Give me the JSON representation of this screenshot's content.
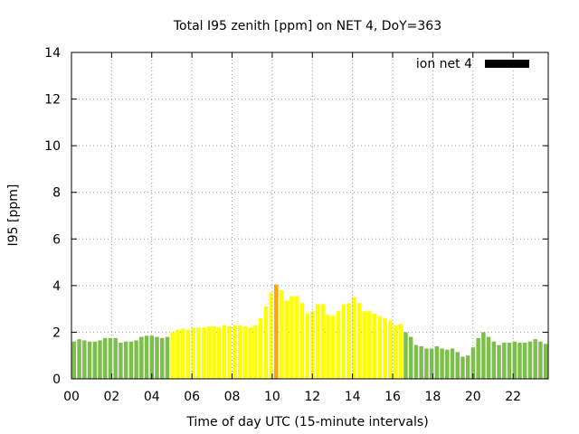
{
  "chart_data": {
    "type": "bar",
    "title": "Total I95 zenith [ppm] on NET 4, DoY=363",
    "xlabel": "Time of day UTC (15-minute intervals)",
    "ylabel": "I95 [ppm]",
    "ylim": [
      0,
      14
    ],
    "xlim": [
      0,
      23.75
    ],
    "grid": true,
    "legend_position": "top-right",
    "legend": {
      "label": "ion net 4",
      "color": "#000000"
    },
    "yticks": [
      "0",
      "2",
      "4",
      "6",
      "8",
      "10",
      "12",
      "14"
    ],
    "xticks": [
      {
        "value": 0,
        "label": "00"
      },
      {
        "value": 2,
        "label": "02"
      },
      {
        "value": 4,
        "label": "04"
      },
      {
        "value": 6,
        "label": "06"
      },
      {
        "value": 8,
        "label": "08"
      },
      {
        "value": 10,
        "label": "10"
      },
      {
        "value": 12,
        "label": "12"
      },
      {
        "value": 14,
        "label": "14"
      },
      {
        "value": 16,
        "label": "16"
      },
      {
        "value": 18,
        "label": "18"
      },
      {
        "value": 20,
        "label": "20"
      },
      {
        "value": 22,
        "label": "22"
      }
    ],
    "colors": {
      "low": "#7cbf4a",
      "medium": "#ffff00",
      "high": "#ffa500"
    },
    "values": [
      1.6,
      1.7,
      1.65,
      1.6,
      1.6,
      1.65,
      1.75,
      1.75,
      1.75,
      1.55,
      1.6,
      1.6,
      1.65,
      1.8,
      1.85,
      1.85,
      1.8,
      1.75,
      1.8,
      2.0,
      2.1,
      2.15,
      2.1,
      2.2,
      2.2,
      2.2,
      2.25,
      2.25,
      2.2,
      2.3,
      2.25,
      2.3,
      2.3,
      2.25,
      2.2,
      2.3,
      2.6,
      3.1,
      3.7,
      4.05,
      3.8,
      3.35,
      3.55,
      3.55,
      3.25,
      2.8,
      2.9,
      3.2,
      3.2,
      2.75,
      2.7,
      2.9,
      3.2,
      3.25,
      3.5,
      3.25,
      2.9,
      2.9,
      2.8,
      2.7,
      2.6,
      2.5,
      2.3,
      2.35,
      2.0,
      1.8,
      1.45,
      1.4,
      1.3,
      1.3,
      1.4,
      1.3,
      1.25,
      1.3,
      1.15,
      0.95,
      1.0,
      1.35,
      1.75,
      2.0,
      1.8,
      1.6,
      1.45,
      1.55,
      1.55,
      1.6,
      1.55,
      1.55,
      1.6,
      1.7,
      1.6,
      1.5
    ],
    "bar_colors": [
      "low",
      "low",
      "low",
      "low",
      "low",
      "low",
      "low",
      "low",
      "low",
      "low",
      "low",
      "low",
      "low",
      "low",
      "low",
      "low",
      "low",
      "low",
      "low",
      "medium",
      "medium",
      "medium",
      "medium",
      "medium",
      "medium",
      "medium",
      "medium",
      "medium",
      "medium",
      "medium",
      "medium",
      "medium",
      "medium",
      "medium",
      "medium",
      "medium",
      "medium",
      "medium",
      "medium",
      "high",
      "medium",
      "medium",
      "medium",
      "medium",
      "medium",
      "medium",
      "medium",
      "medium",
      "medium",
      "medium",
      "medium",
      "medium",
      "medium",
      "medium",
      "medium",
      "medium",
      "medium",
      "medium",
      "medium",
      "medium",
      "medium",
      "medium",
      "medium",
      "medium",
      "low",
      "low",
      "low",
      "low",
      "low",
      "low",
      "low",
      "low",
      "low",
      "low",
      "low",
      "low",
      "low",
      "low",
      "low",
      "low",
      "low",
      "low",
      "low",
      "low",
      "low",
      "low",
      "low",
      "low",
      "low",
      "low",
      "low",
      "low"
    ]
  }
}
